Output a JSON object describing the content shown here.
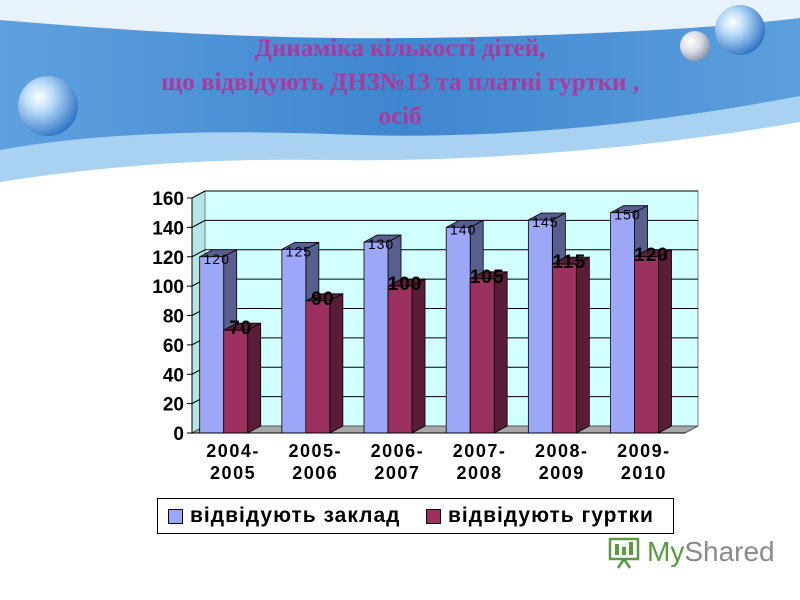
{
  "colors": {
    "banner_dark": "#3f86d0",
    "banner_light": "#a9d2f2",
    "title": "#b0379e",
    "plot_bg": "#d2ffff",
    "series1_front": "#9da7f7",
    "series1_side": "#585e8e",
    "series2_front": "#9c3160",
    "series2_side": "#5a1c37"
  },
  "title": {
    "line1": "Динаміка кількості дітей,",
    "line2": "що відвідують ДНЗ№13 та платні гуртки ,",
    "line3": "осіб"
  },
  "logo": {
    "icon": "presentation-board-icon",
    "text_my": "My",
    "text_shared": "Shared"
  },
  "chart_data": {
    "type": "bar",
    "categories": [
      [
        "2004-",
        "2005"
      ],
      [
        "2005-",
        "2006"
      ],
      [
        "2006-",
        "2007"
      ],
      [
        "2007-",
        "2008"
      ],
      [
        "2008-",
        "2009"
      ],
      [
        "2009-",
        "2010"
      ]
    ],
    "series": [
      {
        "name": "відвідують заклад",
        "values": [
          120,
          125,
          130,
          140,
          145,
          150
        ]
      },
      {
        "name": "відвідують гуртки",
        "values": [
          70,
          90,
          100,
          105,
          115,
          120
        ]
      }
    ],
    "ylim": [
      0,
      160
    ],
    "yticks": [
      0,
      20,
      40,
      60,
      80,
      100,
      120,
      140,
      160
    ],
    "grid": true,
    "legend_position": "bottom",
    "style": "3d-clustered-column"
  }
}
